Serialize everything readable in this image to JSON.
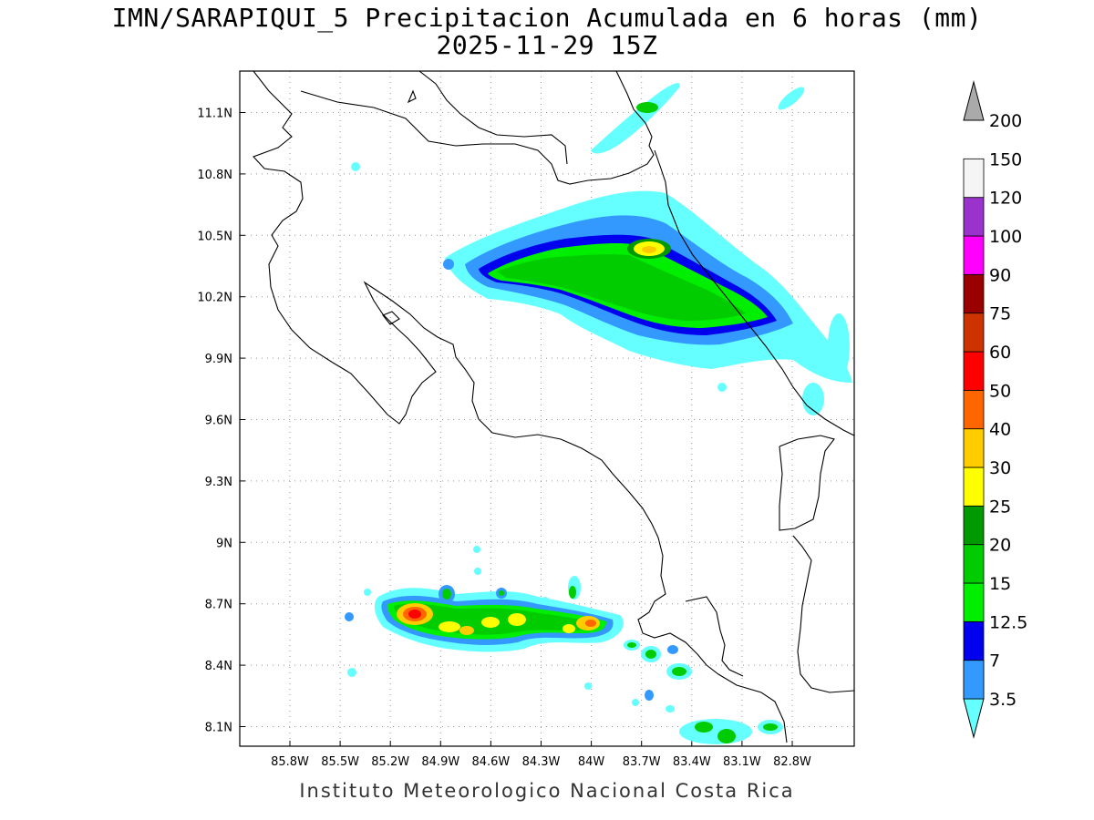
{
  "title": {
    "line1": "IMN/SARAPIQUI_5 Precipitacion Acumulada en 6 horas (mm)",
    "line2": "2025-11-29 15Z"
  },
  "footer": "Instituto Meteorologico Nacional Costa Rica",
  "map": {
    "lon_range": [
      -86.0,
      -83.0
    ],
    "lat_range": [
      8.0,
      11.3
    ],
    "lon_ticks": [
      {
        "v": -85.8,
        "label": "85.8W"
      },
      {
        "v": -85.5,
        "label": "85.5W"
      },
      {
        "v": -85.2,
        "label": "85.2W"
      },
      {
        "v": -84.9,
        "label": "84.9W"
      },
      {
        "v": -84.6,
        "label": "84.6W"
      },
      {
        "v": -84.3,
        "label": "84.3W"
      },
      {
        "v": -84.0,
        "label": "84W"
      },
      {
        "v": -83.7,
        "label": "83.7W"
      },
      {
        "v": -83.4,
        "label": "83.4W"
      },
      {
        "v": -83.1,
        "label": "83.1W"
      },
      {
        "v": -82.8,
        "label": "82.8W"
      }
    ],
    "lat_ticks": [
      {
        "v": 11.1,
        "label": "11.1N"
      },
      {
        "v": 10.8,
        "label": "10.8N"
      },
      {
        "v": 10.5,
        "label": "10.5N"
      },
      {
        "v": 10.2,
        "label": "10.2N"
      },
      {
        "v": 9.9,
        "label": "9.9N"
      },
      {
        "v": 9.6,
        "label": "9.6N"
      },
      {
        "v": 9.3,
        "label": "9.3N"
      },
      {
        "v": 9.0,
        "label": "9N"
      },
      {
        "v": 8.7,
        "label": "8.7N"
      },
      {
        "v": 8.4,
        "label": "8.4N"
      },
      {
        "v": 8.1,
        "label": "8.1N"
      }
    ],
    "grid": "dotted"
  },
  "colorbar": {
    "levels": [
      {
        "label": "3.5",
        "color": "#66ffff"
      },
      {
        "label": "7",
        "color": "#3399ff"
      },
      {
        "label": "12.5",
        "color": "#0000ee"
      },
      {
        "label": "15",
        "color": "#00ee00"
      },
      {
        "label": "20",
        "color": "#00cc00"
      },
      {
        "label": "25",
        "color": "#009900"
      },
      {
        "label": "30",
        "color": "#ffff00"
      },
      {
        "label": "40",
        "color": "#ffcc00"
      },
      {
        "label": "50",
        "color": "#ff6600"
      },
      {
        "label": "60",
        "color": "#ff0000"
      },
      {
        "label": "75",
        "color": "#cc3300"
      },
      {
        "label": "90",
        "color": "#990000"
      },
      {
        "label": "100",
        "color": "#ff00ff"
      },
      {
        "label": "120",
        "color": "#9933cc"
      },
      {
        "label": "150",
        "color": "#f5f5f5"
      },
      {
        "label": "200",
        "color": "#aaaaaa"
      }
    ]
  }
}
